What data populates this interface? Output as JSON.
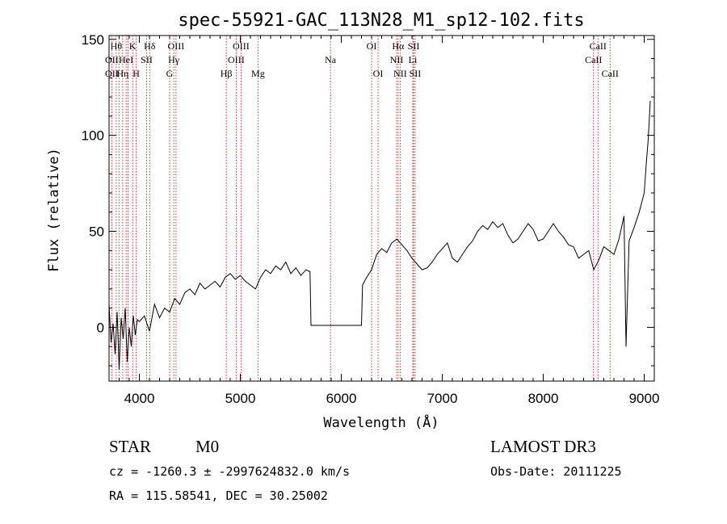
{
  "chart_data": {
    "type": "line",
    "title": "spec-55921-GAC_113N28_M1_sp12-102.fits",
    "xlabel": "Wavelength (Å)",
    "ylabel": "Flux (relative)",
    "xlim": [
      3700,
      9100
    ],
    "ylim": [
      -28,
      152
    ],
    "xticks": [
      4000,
      5000,
      6000,
      7000,
      8000,
      9000
    ],
    "yticks": [
      0,
      50,
      100,
      150
    ],
    "grid": false,
    "series": [
      {
        "x": [
          3700,
          3720,
          3740,
          3760,
          3780,
          3800,
          3820,
          3840,
          3860,
          3880,
          3900,
          3920,
          3940,
          3960,
          3980,
          4000,
          4050,
          4100,
          4150,
          4200,
          4250,
          4300,
          4350,
          4400,
          4450,
          4500,
          4550,
          4600,
          4650,
          4700,
          4750,
          4800,
          4850,
          4900,
          4950,
          5000,
          5050,
          5100,
          5150,
          5200,
          5250,
          5300,
          5350,
          5400,
          5450,
          5500,
          5550,
          5600,
          5650,
          5690,
          5700,
          5800,
          6000,
          6100,
          6200,
          6210,
          6250,
          6300,
          6350,
          6400,
          6450,
          6500,
          6550,
          6600,
          6650,
          6700,
          6750,
          6800,
          6850,
          6900,
          6950,
          7000,
          7050,
          7100,
          7150,
          7200,
          7250,
          7300,
          7350,
          7400,
          7450,
          7500,
          7550,
          7600,
          7650,
          7700,
          7750,
          7800,
          7850,
          7900,
          7950,
          8000,
          8050,
          8100,
          8150,
          8200,
          8250,
          8300,
          8350,
          8400,
          8450,
          8500,
          8550,
          8600,
          8650,
          8700,
          8750,
          8800,
          8820,
          8850,
          8900,
          8950,
          9000,
          9020,
          9040,
          9060
        ],
        "y": [
          12,
          -8,
          2,
          -14,
          8,
          -22,
          5,
          -6,
          10,
          -18,
          0,
          -10,
          6,
          -4,
          4,
          3,
          6,
          -2,
          12,
          5,
          10,
          8,
          15,
          12,
          18,
          20,
          17,
          23,
          20,
          22,
          24,
          21,
          26,
          28,
          25,
          27,
          24,
          22,
          20,
          26,
          30,
          28,
          32,
          30,
          34,
          28,
          31,
          27,
          30,
          29,
          1,
          1,
          1,
          1,
          1,
          22,
          26,
          30,
          38,
          41,
          39,
          44,
          46,
          43,
          40,
          36,
          33,
          30,
          31,
          34,
          38,
          41,
          44,
          36,
          34,
          38,
          42,
          45,
          50,
          53,
          51,
          55,
          52,
          54,
          48,
          44,
          46,
          50,
          54,
          51,
          45,
          46,
          50,
          54,
          50,
          47,
          43,
          42,
          36,
          38,
          40,
          30,
          35,
          42,
          40,
          38,
          46,
          58,
          -10,
          45,
          52,
          60,
          70,
          85,
          98,
          118
        ]
      }
    ],
    "line_markers": [
      {
        "wl": 3727,
        "labels": [
          "",
          "OII",
          "OII"
        ]
      },
      {
        "wl": 3771,
        "labels": [
          "Hθ",
          "",
          ""
        ]
      },
      {
        "wl": 3798,
        "labels": [
          "",
          "",
          ""
        ]
      },
      {
        "wl": 3835,
        "labels": [
          "",
          "",
          "Hη"
        ]
      },
      {
        "wl": 3869,
        "labels": [
          "",
          "HeI",
          ""
        ]
      },
      {
        "wl": 3889,
        "labels": [
          "",
          "",
          ""
        ]
      },
      {
        "wl": 3934,
        "labels": [
          "K",
          "",
          ""
        ]
      },
      {
        "wl": 3969,
        "labels": [
          "",
          "",
          "H"
        ]
      },
      {
        "wl": 4072,
        "labels": [
          "",
          "SII",
          ""
        ]
      },
      {
        "wl": 4102,
        "labels": [
          "Hδ",
          "",
          ""
        ]
      },
      {
        "wl": 4300,
        "labels": [
          "",
          "",
          "G"
        ]
      },
      {
        "wl": 4341,
        "labels": [
          "",
          "Hγ",
          ""
        ]
      },
      {
        "wl": 4363,
        "labels": [
          "OIII",
          "",
          ""
        ]
      },
      {
        "wl": 4861,
        "labels": [
          "",
          "",
          "Hβ"
        ]
      },
      {
        "wl": 4959,
        "labels": [
          "",
          "OIII",
          ""
        ]
      },
      {
        "wl": 5007,
        "labels": [
          "OIII",
          "",
          ""
        ]
      },
      {
        "wl": 5175,
        "labels": [
          "",
          "",
          "Mg"
        ]
      },
      {
        "wl": 5893,
        "labels": [
          "",
          "Na",
          ""
        ]
      },
      {
        "wl": 6300,
        "labels": [
          "OI",
          "",
          ""
        ]
      },
      {
        "wl": 6364,
        "labels": [
          "",
          "",
          "OI"
        ]
      },
      {
        "wl": 6548,
        "labels": [
          "",
          "NII",
          ""
        ]
      },
      {
        "wl": 6563,
        "labels": [
          "Hα",
          "",
          ""
        ]
      },
      {
        "wl": 6583,
        "labels": [
          "",
          "",
          "NII"
        ]
      },
      {
        "wl": 6708,
        "labels": [
          "",
          "Li",
          ""
        ]
      },
      {
        "wl": 6716,
        "labels": [
          "SII",
          "",
          ""
        ]
      },
      {
        "wl": 6731,
        "labels": [
          "",
          "",
          "SII"
        ]
      },
      {
        "wl": 8498,
        "labels": [
          "",
          "CaII",
          ""
        ]
      },
      {
        "wl": 8542,
        "labels": [
          "CaII",
          "",
          ""
        ]
      },
      {
        "wl": 8662,
        "labels": [
          "",
          "",
          "CaII"
        ]
      }
    ]
  },
  "info": {
    "class": "STAR",
    "subclass": "M0",
    "survey": "LAMOST DR3",
    "cz": "cz = -1260.3 ± -2997624832.0 km/s",
    "obs_date": "Obs-Date: 20111225",
    "radec": "RA = 115.58541, DEC =  30.25002"
  }
}
